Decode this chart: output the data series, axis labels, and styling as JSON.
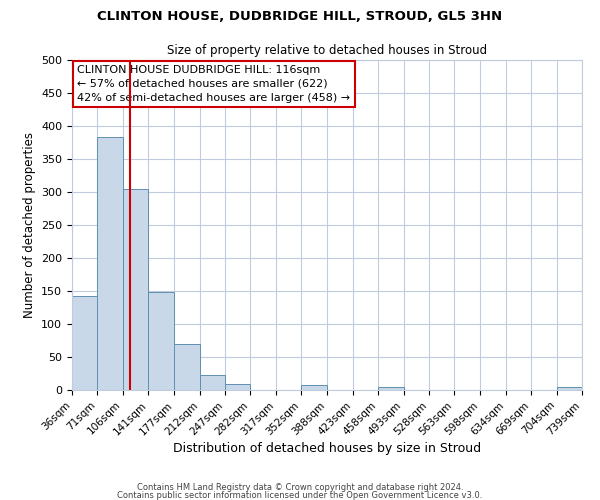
{
  "title": "CLINTON HOUSE, DUDBRIDGE HILL, STROUD, GL5 3HN",
  "subtitle": "Size of property relative to detached houses in Stroud",
  "xlabel": "Distribution of detached houses by size in Stroud",
  "ylabel": "Number of detached properties",
  "bar_color": "#c8d8e8",
  "bar_edge_color": "#6090b0",
  "bins_left": [
    36,
    71,
    106,
    141,
    177,
    212,
    247,
    282,
    317,
    352,
    388,
    423,
    458,
    493,
    528,
    563,
    598,
    634,
    669,
    704
  ],
  "bin_width": 35,
  "bar_heights": [
    143,
    383,
    305,
    148,
    70,
    22,
    9,
    0,
    0,
    8,
    0,
    0,
    4,
    0,
    0,
    0,
    0,
    0,
    0,
    4
  ],
  "x_tick_labels": [
    "36sqm",
    "71sqm",
    "106sqm",
    "141sqm",
    "177sqm",
    "212sqm",
    "247sqm",
    "282sqm",
    "317sqm",
    "352sqm",
    "388sqm",
    "423sqm",
    "458sqm",
    "493sqm",
    "528sqm",
    "563sqm",
    "598sqm",
    "634sqm",
    "669sqm",
    "704sqm",
    "739sqm"
  ],
  "ylim": [
    0,
    500
  ],
  "yticks": [
    0,
    50,
    100,
    150,
    200,
    250,
    300,
    350,
    400,
    450,
    500
  ],
  "property_size": 116,
  "vline_color": "#cc0000",
  "annotation_line1": "CLINTON HOUSE DUDBRIDGE HILL: 116sqm",
  "annotation_line2": "← 57% of detached houses are smaller (622)",
  "annotation_line3": "42% of semi-detached houses are larger (458) →",
  "annotation_box_color": "#ffffff",
  "annotation_box_edge": "#cc0000",
  "footer_line1": "Contains HM Land Registry data © Crown copyright and database right 2024.",
  "footer_line2": "Contains public sector information licensed under the Open Government Licence v3.0.",
  "background_color": "#ffffff",
  "grid_color": "#c0ccdd"
}
